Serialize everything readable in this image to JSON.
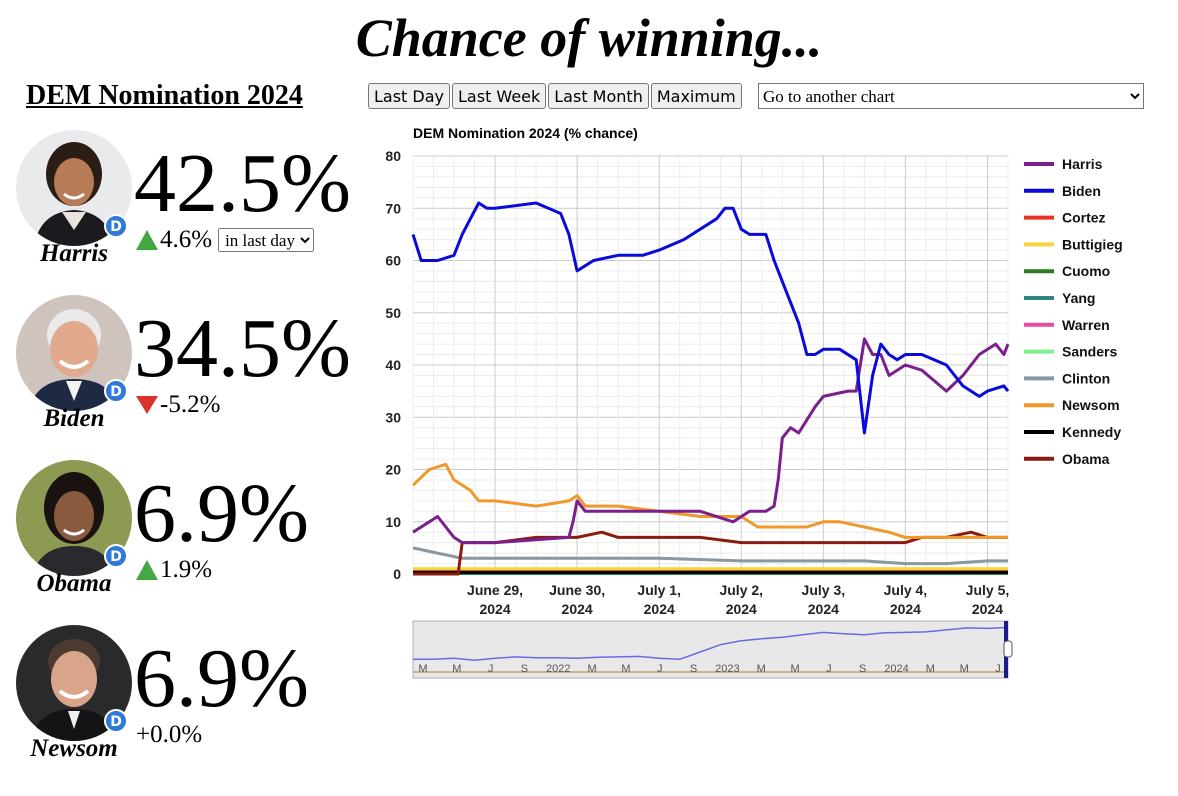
{
  "page": {
    "title": "Chance of winning...",
    "market_title": "DEM Nomination 2024"
  },
  "candidates": [
    {
      "name": "Harris",
      "pct": "42.5%",
      "change": "4.6%",
      "direction": "up",
      "period": "in last day"
    },
    {
      "name": "Biden",
      "pct": "34.5%",
      "change": "-5.2%",
      "direction": "down"
    },
    {
      "name": "Obama",
      "pct": "6.9%",
      "change": "1.9%",
      "direction": "up"
    },
    {
      "name": "Newsom",
      "pct": "6.9%",
      "change": "+0.0%",
      "direction": "none"
    }
  ],
  "toolbar": {
    "last_day": "Last Day",
    "last_week": "Last Week",
    "last_month": "Last Month",
    "maximum": "Maximum",
    "chart_select": "Go to another chart"
  },
  "colors": {
    "Harris": "#7b1f8c",
    "Biden": "#0a0adb",
    "Cortez": "#e63222",
    "Buttigieg": "#f7d23a",
    "Cuomo": "#2c7a1e",
    "Yang": "#2f8484",
    "Warren": "#e24aa3",
    "Sanders": "#7ff08c",
    "Clinton": "#8a96a0",
    "Newsom": "#f0982a",
    "Kennedy": "#000000",
    "Obama": "#8b1a10",
    "dem_badge": "#2f7ad6",
    "up": "#43a843",
    "down": "#d8342a"
  },
  "chart_data": {
    "type": "line",
    "title": "DEM Nomination 2024 (% chance)",
    "ylim": [
      0,
      80
    ],
    "yticks": [
      0,
      10,
      20,
      30,
      40,
      50,
      60,
      70,
      80
    ],
    "x_start": 0,
    "x_end": 7.25,
    "xticks": [
      {
        "x": 1,
        "line1": "June 29,",
        "line2": "2024"
      },
      {
        "x": 2,
        "line1": "June 30,",
        "line2": "2024"
      },
      {
        "x": 3,
        "line1": "July 1,",
        "line2": "2024"
      },
      {
        "x": 4,
        "line1": "July 2,",
        "line2": "2024"
      },
      {
        "x": 5,
        "line1": "July 3,",
        "line2": "2024"
      },
      {
        "x": 6,
        "line1": "July 4,",
        "line2": "2024"
      },
      {
        "x": 7,
        "line1": "July 5,",
        "line2": "2024"
      }
    ],
    "legend_position": "right",
    "series": [
      {
        "name": "Harris",
        "x": [
          0,
          0.3,
          0.5,
          0.6,
          1.0,
          1.9,
          1.95,
          2.0,
          2.1,
          2.2,
          2.5,
          3.0,
          3.5,
          3.9,
          4.1,
          4.3,
          4.4,
          4.45,
          4.5,
          4.6,
          4.7,
          4.9,
          5.0,
          5.3,
          5.4,
          5.5,
          5.6,
          5.7,
          5.8,
          6.0,
          6.2,
          6.5,
          6.7,
          6.9,
          7.1,
          7.2,
          7.25
        ],
        "y": [
          8,
          11,
          7,
          6,
          6,
          7,
          10,
          14,
          12,
          12,
          12,
          12,
          12,
          10,
          12,
          12,
          13,
          18,
          26,
          28,
          27,
          32,
          34,
          35,
          35,
          45,
          42,
          42,
          38,
          40,
          39,
          35,
          38,
          42,
          44,
          42,
          44
        ]
      },
      {
        "name": "Biden",
        "x": [
          0,
          0.1,
          0.3,
          0.5,
          0.6,
          0.7,
          0.8,
          0.9,
          1.0,
          1.5,
          1.8,
          1.9,
          2.0,
          2.1,
          2.2,
          2.5,
          2.8,
          3.0,
          3.3,
          3.5,
          3.7,
          3.8,
          3.9,
          4.0,
          4.1,
          4.2,
          4.3,
          4.4,
          4.5,
          4.6,
          4.7,
          4.8,
          4.9,
          5.0,
          5.2,
          5.4,
          5.5,
          5.6,
          5.7,
          5.8,
          5.9,
          6.0,
          6.2,
          6.5,
          6.7,
          6.9,
          7.0,
          7.2,
          7.25
        ],
        "y": [
          65,
          60,
          60,
          61,
          65,
          68,
          71,
          70,
          70,
          71,
          69,
          65,
          58,
          59,
          60,
          61,
          61,
          62,
          64,
          66,
          68,
          70,
          70,
          66,
          65,
          65,
          65,
          60,
          56,
          52,
          48,
          42,
          42,
          43,
          43,
          41,
          27,
          38,
          44,
          42,
          41,
          42,
          42,
          40,
          36,
          34,
          35,
          36,
          35
        ]
      },
      {
        "name": "Newsom",
        "x": [
          0,
          0.2,
          0.4,
          0.5,
          0.7,
          0.8,
          1.0,
          1.5,
          1.9,
          2.0,
          2.1,
          2.5,
          3.0,
          3.5,
          3.8,
          4.0,
          4.2,
          4.5,
          4.8,
          5.0,
          5.2,
          5.5,
          5.8,
          6.0,
          6.3,
          6.5,
          7.0,
          7.25
        ],
        "y": [
          17,
          20,
          21,
          18,
          16,
          14,
          14,
          13,
          14,
          15,
          13,
          13,
          12,
          11,
          11,
          11,
          9,
          9,
          9,
          10,
          10,
          9,
          8,
          7,
          7,
          7,
          7,
          7
        ]
      },
      {
        "name": "Obama",
        "x": [
          0,
          0.5,
          0.55,
          0.6,
          1.0,
          1.5,
          2.0,
          2.3,
          2.5,
          3.0,
          3.5,
          4.0,
          4.5,
          5.0,
          5.5,
          6.0,
          6.2,
          6.5,
          6.8,
          7.0,
          7.25
        ],
        "y": [
          0,
          0,
          0,
          6,
          6,
          7,
          7,
          8,
          7,
          7,
          7,
          6,
          6,
          6,
          6,
          6,
          7,
          7,
          8,
          7,
          7
        ]
      },
      {
        "name": "Clinton",
        "x": [
          0,
          0.3,
          0.6,
          1.0,
          2.0,
          3.0,
          4.0,
          5.0,
          5.5,
          6.0,
          6.5,
          7.0,
          7.25
        ],
        "y": [
          5,
          4,
          3,
          3,
          3,
          3,
          2.5,
          2.5,
          2.5,
          2,
          2,
          2.5,
          2.5
        ]
      },
      {
        "name": "Kennedy",
        "x": [
          0,
          7.25
        ],
        "y": [
          0.3,
          0.3
        ]
      },
      {
        "name": "Buttigieg",
        "x": [
          0,
          7.25
        ],
        "y": [
          1,
          1
        ]
      },
      {
        "name": "Cortez",
        "x": [
          0,
          7.25
        ],
        "y": [
          0.5,
          0.5
        ]
      },
      {
        "name": "Cuomo",
        "x": [
          0,
          7.25
        ],
        "y": [
          0.2,
          0.2
        ]
      },
      {
        "name": "Yang",
        "x": [
          0,
          7.25
        ],
        "y": [
          0.1,
          0.1
        ]
      },
      {
        "name": "Warren",
        "x": [
          0,
          7.25
        ],
        "y": [
          0.4,
          0.4
        ]
      },
      {
        "name": "Sanders",
        "x": [
          0,
          7.25
        ],
        "y": [
          0.2,
          0.2
        ]
      }
    ],
    "legend": [
      "Harris",
      "Biden",
      "Cortez",
      "Buttigieg",
      "Cuomo",
      "Yang",
      "Warren",
      "Sanders",
      "Clinton",
      "Newsom",
      "Kennedy",
      "Obama"
    ],
    "overview": {
      "labels": [
        "M",
        "M",
        "J",
        "S",
        "2022",
        "M",
        "M",
        "J",
        "S",
        "2023",
        "M",
        "M",
        "J",
        "S",
        "2024",
        "M",
        "M",
        "J"
      ],
      "biden_trend": [
        0.3,
        0.3,
        0.32,
        0.28,
        0.32,
        0.35,
        0.33,
        0.33,
        0.32,
        0.34,
        0.35,
        0.36,
        0.32,
        0.3,
        0.45,
        0.6,
        0.68,
        0.72,
        0.75,
        0.8,
        0.85,
        0.82,
        0.8,
        0.84,
        0.85,
        0.86,
        0.9,
        0.94,
        0.93,
        0.95
      ]
    }
  }
}
